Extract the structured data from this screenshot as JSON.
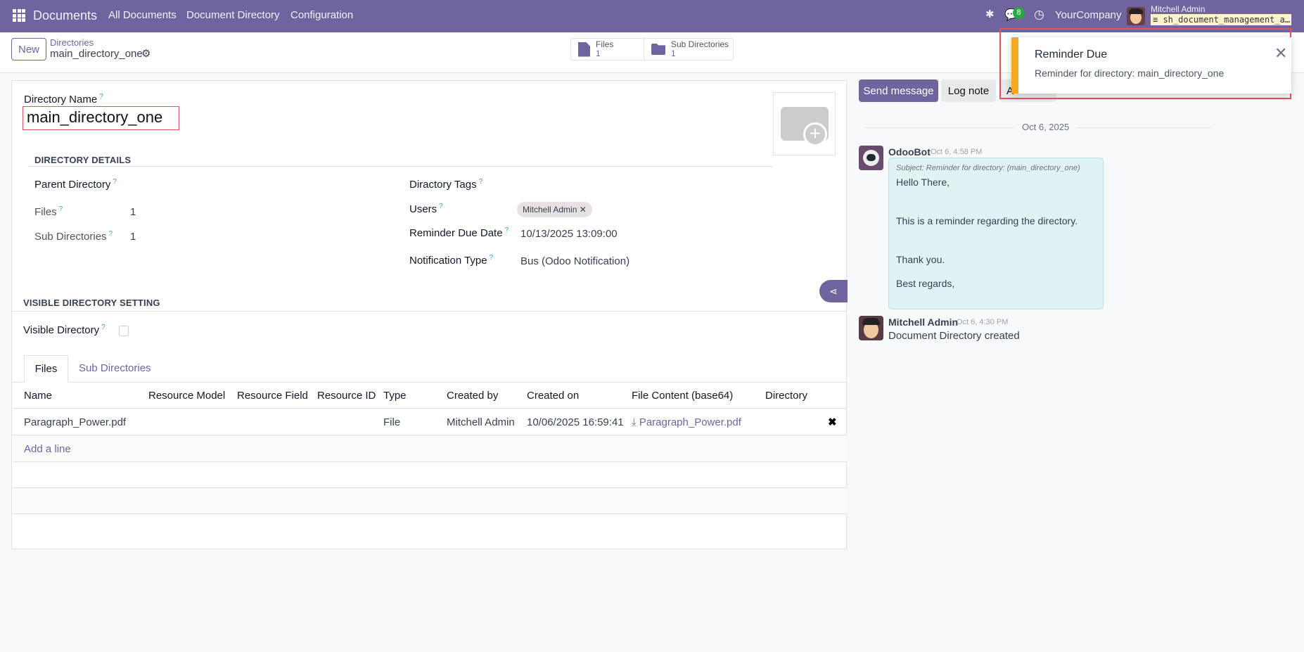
{
  "navbar": {
    "app_name": "Documents",
    "menu": [
      "All Documents",
      "Document Directory",
      "Configuration"
    ],
    "chat_badge": "8",
    "company": "YourCompany",
    "user": "Mitchell Admin",
    "database": "sh_document_management_a…",
    "brand_color": "#71639e"
  },
  "control_panel": {
    "new_label": "New",
    "breadcrumb_parent": "Directories",
    "breadcrumb_current": "main_directory_one",
    "stats": [
      {
        "label": "Files",
        "value": "1",
        "icon": "file-icon"
      },
      {
        "label": "Sub Directories",
        "value": "1",
        "icon": "folder-icon"
      }
    ]
  },
  "form": {
    "name_label": "Directory Name",
    "name_value": "main_directory_one",
    "help": "?",
    "details_title": "DIRECTORY DETAILS",
    "parent_directory_label": "Parent Directory",
    "files_label": "Files",
    "files_value": "1",
    "subdirs_label": "Sub Directories",
    "subdirs_value": "1",
    "tags_label": "Diractory Tags",
    "users_label": "Users",
    "users_tag": "Mitchell Admin",
    "reminder_label": "Reminder Due Date",
    "reminder_value": "10/13/2025 13:09:00",
    "notif_label": "Notification Type",
    "notif_value": "Bus (Odoo Notification)",
    "visible_title": "VISIBLE DIRECTORY SETTING",
    "visible_label": "Visible Directory",
    "visible_checked": false,
    "tabs": [
      "Files",
      "Sub Directories"
    ],
    "columns": [
      "Name",
      "Resource Model",
      "Resource Field",
      "Resource ID",
      "Type",
      "Created by",
      "Created on",
      "File Content (base64)",
      "Directory"
    ],
    "rows": [
      {
        "name": "Paragraph_Power.pdf",
        "resource_model": "",
        "resource_field": "",
        "resource_id": "",
        "type": "File",
        "created_by": "Mitchell Admin",
        "created_on": "10/06/2025 16:59:41",
        "file_content": "Paragraph_Power.pdf",
        "directory": ""
      }
    ],
    "add_line": "Add a line"
  },
  "chatter": {
    "send_message": "Send message",
    "log_note": "Log note",
    "activities_partial": "A",
    "date_separator": "Oct 6, 2025",
    "messages": [
      {
        "author": "OdooBot",
        "time": "Oct 6, 4:58 PM",
        "subject": "Subject: Reminder for directory: (main_directory_one)",
        "lines": [
          "Hello There,",
          "This is a reminder regarding the directory.",
          "Thank you.",
          "Best regards,"
        ]
      },
      {
        "author": "Mitchell Admin",
        "time": "Oct 6, 4:30 PM",
        "body": "Document Directory created"
      }
    ]
  },
  "notification": {
    "title": "Reminder Due",
    "body": "Reminder for directory: main_directory_one",
    "accent": "#f5a623"
  }
}
